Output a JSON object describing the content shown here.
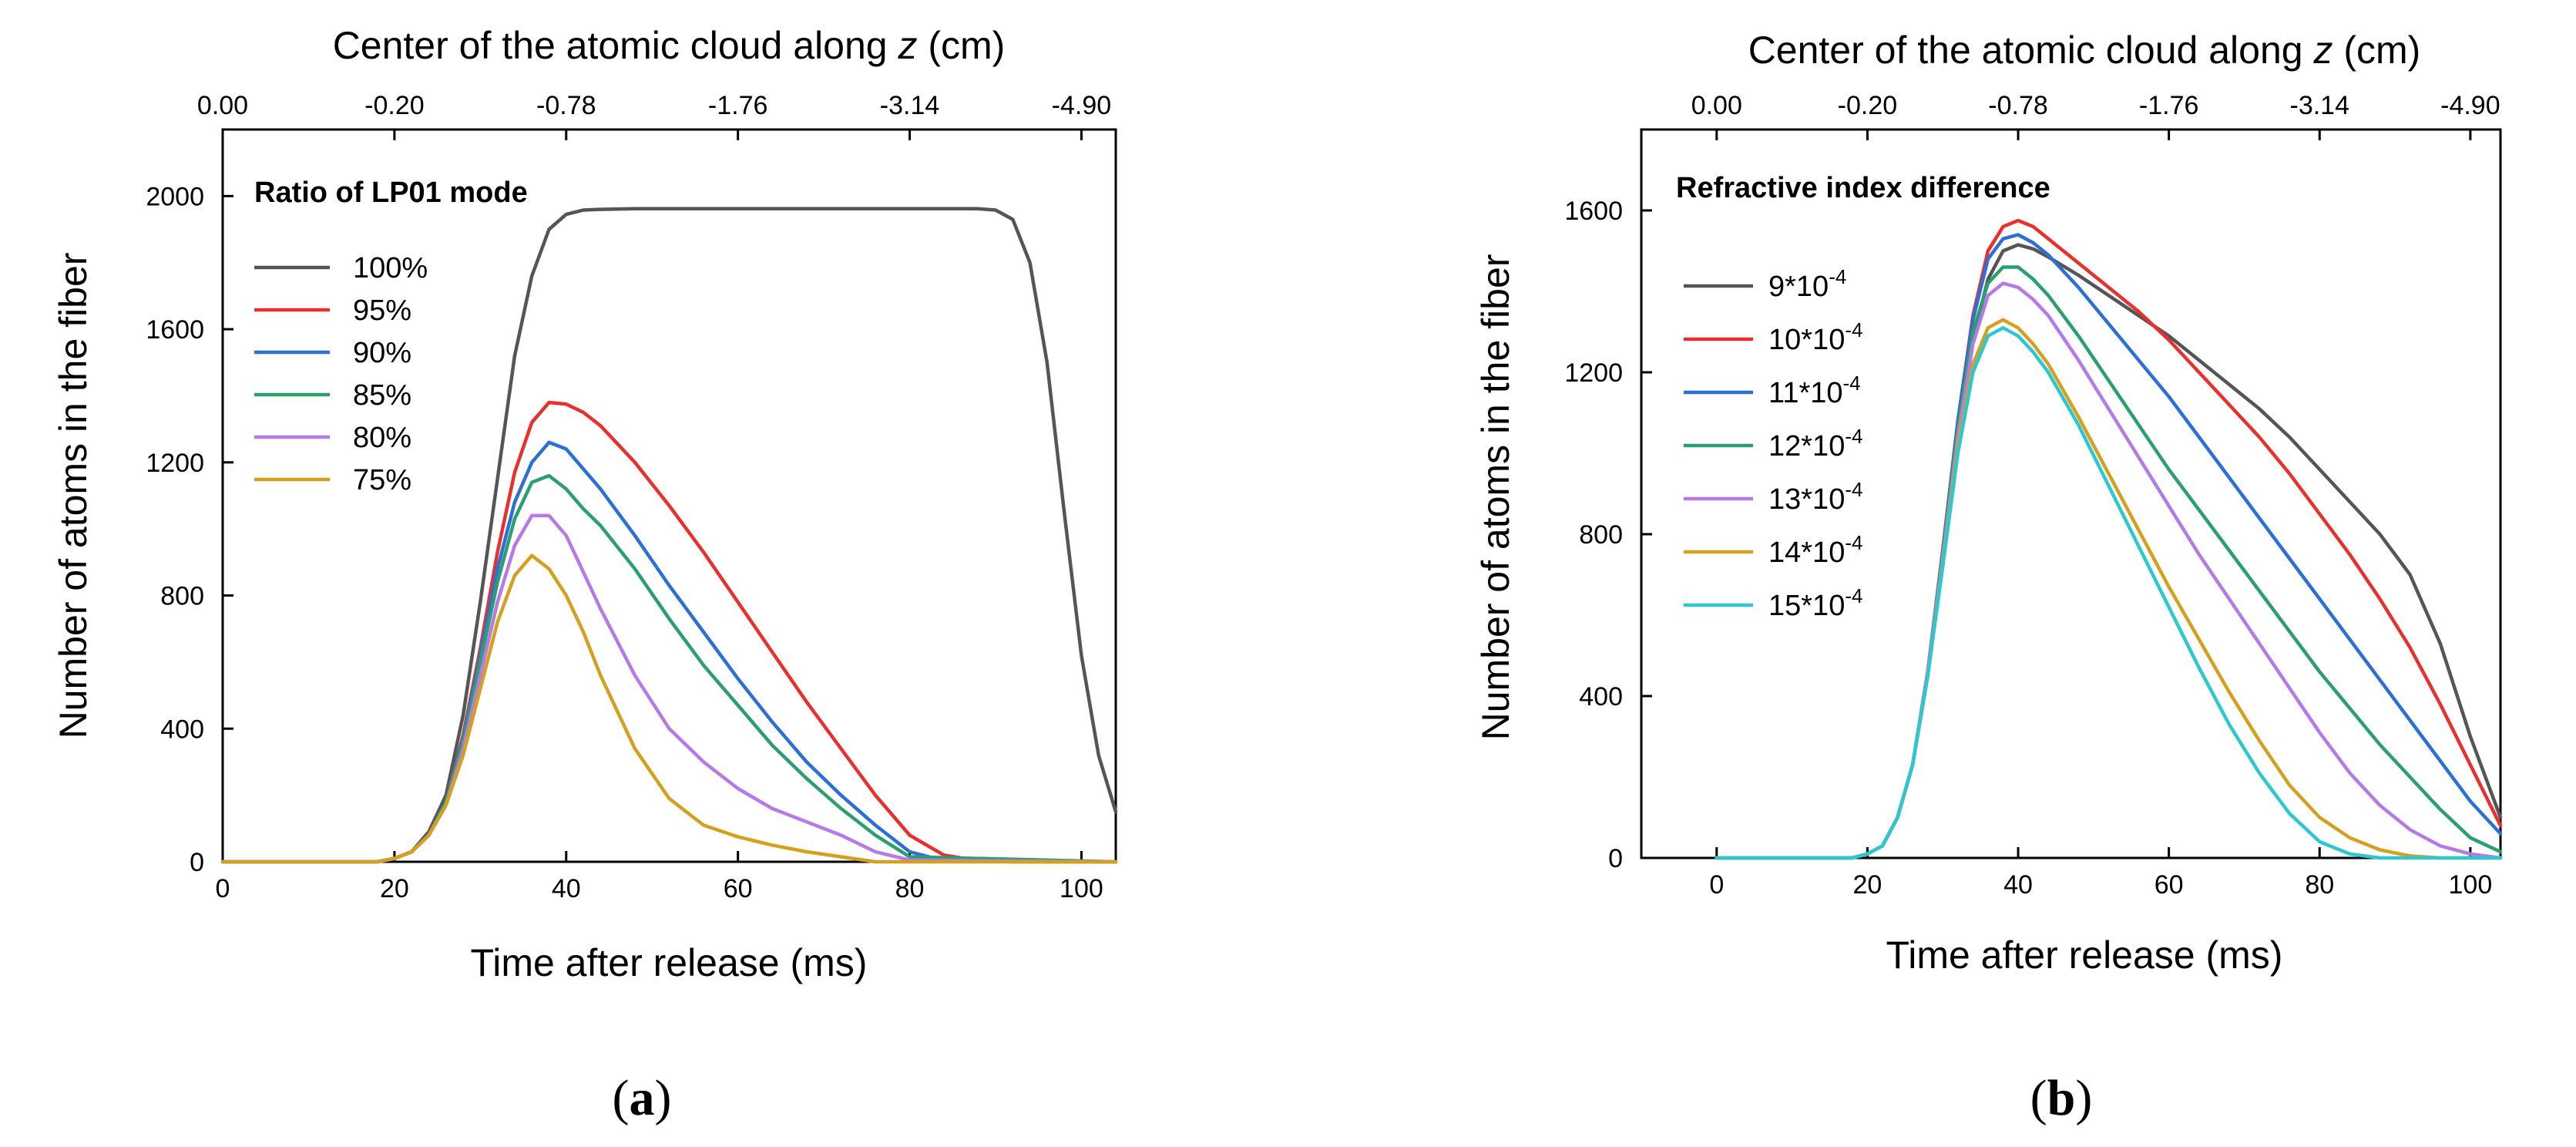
{
  "chart_data": [
    {
      "type": "line",
      "panel_label": "a",
      "title": "",
      "xlabel": "Time after release (ms)",
      "ylabel": "Number of atoms in the fiber",
      "xlim": [
        0,
        104
      ],
      "ylim": [
        0,
        2200
      ],
      "xticks": [
        0,
        20,
        40,
        60,
        80,
        100
      ],
      "yticks": [
        0,
        400,
        800,
        1200,
        1600,
        2000
      ],
      "top_axis": {
        "label": "Center of the atomic cloud along ",
        "label_italic": "z",
        "label_unit": " (cm)",
        "ticks": [
          {
            "x": 0,
            "label": "0.00"
          },
          {
            "x": 20,
            "label": "-0.20"
          },
          {
            "x": 40,
            "label": "-0.78"
          },
          {
            "x": 60,
            "label": "-1.76"
          },
          {
            "x": 80,
            "label": "-3.14"
          },
          {
            "x": 100,
            "label": "-4.90"
          }
        ]
      },
      "legend": {
        "title": "Ratio of LP01 mode",
        "position": "top-left"
      },
      "series": [
        {
          "name": "100%",
          "color": "#555555",
          "x": [
            0,
            18,
            20,
            22,
            24,
            26,
            28,
            30,
            32,
            34,
            36,
            38,
            40,
            42,
            44,
            48,
            60,
            80,
            88,
            90,
            92,
            94,
            96,
            98,
            100,
            102,
            104
          ],
          "y": [
            0,
            0,
            10,
            30,
            90,
            200,
            440,
            780,
            1150,
            1520,
            1760,
            1900,
            1945,
            1958,
            1960,
            1962,
            1962,
            1962,
            1962,
            1958,
            1930,
            1800,
            1500,
            1050,
            620,
            320,
            150
          ]
        },
        {
          "name": "95%",
          "color": "#e8302c",
          "x": [
            0,
            18,
            20,
            22,
            24,
            26,
            28,
            30,
            32,
            34,
            36,
            38,
            40,
            42,
            44,
            48,
            52,
            56,
            60,
            64,
            68,
            72,
            76,
            80,
            84,
            88,
            92,
            104
          ],
          "y": [
            0,
            0,
            10,
            30,
            80,
            180,
            380,
            640,
            930,
            1170,
            1320,
            1380,
            1375,
            1350,
            1310,
            1200,
            1070,
            930,
            780,
            630,
            480,
            340,
            200,
            80,
            20,
            3,
            0,
            0
          ]
        },
        {
          "name": "90%",
          "color": "#2c6fd6",
          "x": [
            0,
            18,
            20,
            22,
            24,
            26,
            28,
            30,
            32,
            34,
            36,
            38,
            40,
            42,
            44,
            48,
            52,
            56,
            60,
            64,
            68,
            72,
            76,
            80,
            84,
            104
          ],
          "y": [
            0,
            0,
            10,
            30,
            80,
            180,
            370,
            620,
            880,
            1080,
            1200,
            1260,
            1240,
            1180,
            1120,
            980,
            830,
            690,
            550,
            420,
            300,
            200,
            110,
            30,
            3,
            0
          ]
        },
        {
          "name": "85%",
          "color": "#2ba06e",
          "x": [
            0,
            18,
            20,
            22,
            24,
            26,
            28,
            30,
            32,
            34,
            36,
            38,
            40,
            42,
            44,
            48,
            52,
            56,
            60,
            64,
            68,
            72,
            76,
            80,
            104
          ],
          "y": [
            0,
            0,
            10,
            30,
            80,
            180,
            360,
            600,
            840,
            1030,
            1140,
            1160,
            1120,
            1060,
            1010,
            880,
            730,
            590,
            470,
            350,
            250,
            160,
            80,
            15,
            0
          ]
        },
        {
          "name": "80%",
          "color": "#b57ae6",
          "x": [
            0,
            18,
            20,
            22,
            24,
            26,
            28,
            30,
            32,
            34,
            36,
            38,
            40,
            42,
            44,
            48,
            52,
            56,
            60,
            64,
            68,
            72,
            76,
            80,
            104
          ],
          "y": [
            0,
            0,
            10,
            30,
            80,
            170,
            340,
            560,
            780,
            950,
            1040,
            1040,
            980,
            870,
            760,
            560,
            400,
            300,
            220,
            160,
            120,
            80,
            30,
            5,
            0
          ]
        },
        {
          "name": "75%",
          "color": "#d4a020",
          "x": [
            0,
            18,
            20,
            22,
            24,
            26,
            28,
            30,
            32,
            34,
            36,
            38,
            40,
            42,
            44,
            48,
            52,
            56,
            60,
            64,
            68,
            72,
            76,
            104
          ],
          "y": [
            0,
            0,
            10,
            30,
            80,
            170,
            320,
            520,
            720,
            860,
            920,
            880,
            800,
            690,
            560,
            340,
            190,
            110,
            75,
            50,
            30,
            15,
            0,
            0
          ]
        }
      ]
    },
    {
      "type": "line",
      "panel_label": "b",
      "title": "",
      "xlabel": "Time after release (ms)",
      "ylabel": "Number of atoms in the fiber",
      "xlim": [
        -10,
        104
      ],
      "ylim": [
        0,
        1800
      ],
      "xticks": [
        0,
        20,
        40,
        60,
        80,
        100
      ],
      "yticks": [
        0,
        400,
        800,
        1200,
        1600
      ],
      "top_axis": {
        "label": "Center of the atomic cloud along ",
        "label_italic": "z",
        "label_unit": " (cm)",
        "ticks": [
          {
            "x": 0,
            "label": "0.00"
          },
          {
            "x": 20,
            "label": "-0.20"
          },
          {
            "x": 40,
            "label": "-0.78"
          },
          {
            "x": 60,
            "label": "-1.76"
          },
          {
            "x": 80,
            "label": "-3.14"
          },
          {
            "x": 100,
            "label": "-4.90"
          }
        ]
      },
      "legend": {
        "title": "Refractive index difference",
        "position": "top-left"
      },
      "series": [
        {
          "name": "9*10",
          "exp": "-4",
          "color": "#555555",
          "x": [
            0,
            18,
            20,
            22,
            24,
            26,
            28,
            30,
            32,
            34,
            36,
            38,
            40,
            42,
            44,
            48,
            52,
            56,
            60,
            64,
            68,
            72,
            76,
            80,
            84,
            88,
            92,
            96,
            100,
            104
          ],
          "y": [
            0,
            0,
            10,
            30,
            100,
            230,
            450,
            740,
            1040,
            1280,
            1430,
            1500,
            1515,
            1505,
            1485,
            1440,
            1390,
            1340,
            1290,
            1230,
            1170,
            1110,
            1040,
            960,
            880,
            800,
            700,
            530,
            300,
            100
          ]
        },
        {
          "name": "10*10",
          "exp": "-4",
          "color": "#e8302c",
          "x": [
            0,
            18,
            20,
            22,
            24,
            26,
            28,
            30,
            32,
            34,
            36,
            38,
            40,
            42,
            44,
            48,
            52,
            56,
            60,
            64,
            68,
            72,
            76,
            80,
            84,
            88,
            92,
            96,
            100,
            104
          ],
          "y": [
            0,
            0,
            10,
            30,
            100,
            230,
            460,
            760,
            1080,
            1340,
            1500,
            1560,
            1575,
            1560,
            1530,
            1470,
            1410,
            1350,
            1280,
            1200,
            1120,
            1040,
            950,
            850,
            750,
            640,
            520,
            380,
            230,
            80
          ]
        },
        {
          "name": "11*10",
          "exp": "-4",
          "color": "#2c6fd6",
          "x": [
            0,
            18,
            20,
            22,
            24,
            26,
            28,
            30,
            32,
            34,
            36,
            38,
            40,
            42,
            44,
            48,
            52,
            56,
            60,
            64,
            68,
            72,
            76,
            80,
            84,
            88,
            92,
            96,
            100,
            104
          ],
          "y": [
            0,
            0,
            10,
            30,
            100,
            230,
            460,
            760,
            1080,
            1330,
            1480,
            1530,
            1540,
            1520,
            1490,
            1410,
            1320,
            1230,
            1140,
            1040,
            940,
            840,
            740,
            640,
            540,
            440,
            340,
            240,
            140,
            60
          ]
        },
        {
          "name": "12*10",
          "exp": "-4",
          "color": "#2ba06e",
          "x": [
            0,
            18,
            20,
            22,
            24,
            26,
            28,
            30,
            32,
            34,
            36,
            38,
            40,
            42,
            44,
            48,
            52,
            56,
            60,
            64,
            68,
            72,
            76,
            80,
            84,
            88,
            92,
            96,
            100,
            104
          ],
          "y": [
            0,
            0,
            10,
            30,
            100,
            230,
            460,
            750,
            1060,
            1300,
            1420,
            1460,
            1460,
            1430,
            1390,
            1290,
            1180,
            1070,
            960,
            860,
            760,
            660,
            560,
            460,
            370,
            280,
            200,
            120,
            50,
            15
          ]
        },
        {
          "name": "13*10",
          "exp": "-4",
          "color": "#b57ae6",
          "x": [
            0,
            18,
            20,
            22,
            24,
            26,
            28,
            30,
            32,
            34,
            36,
            38,
            40,
            42,
            44,
            48,
            52,
            56,
            60,
            64,
            68,
            72,
            76,
            80,
            84,
            88,
            92,
            96,
            100,
            104
          ],
          "y": [
            0,
            0,
            10,
            30,
            100,
            230,
            460,
            740,
            1040,
            1270,
            1390,
            1420,
            1410,
            1380,
            1340,
            1230,
            1110,
            990,
            870,
            750,
            640,
            530,
            420,
            310,
            210,
            130,
            70,
            30,
            10,
            0
          ]
        },
        {
          "name": "14*10",
          "exp": "-4",
          "color": "#d4a020",
          "x": [
            0,
            18,
            20,
            22,
            24,
            26,
            28,
            30,
            32,
            34,
            36,
            38,
            40,
            42,
            44,
            48,
            52,
            56,
            60,
            64,
            68,
            72,
            76,
            80,
            84,
            88,
            92,
            96,
            100,
            104
          ],
          "y": [
            0,
            0,
            10,
            30,
            100,
            230,
            450,
            730,
            1020,
            1220,
            1310,
            1330,
            1310,
            1270,
            1220,
            1090,
            950,
            810,
            670,
            540,
            410,
            290,
            180,
            100,
            50,
            20,
            5,
            0,
            0,
            0
          ]
        },
        {
          "name": "15*10",
          "exp": "-4",
          "color": "#2cc8d2",
          "x": [
            0,
            18,
            20,
            22,
            24,
            26,
            28,
            30,
            32,
            34,
            36,
            38,
            40,
            42,
            44,
            48,
            52,
            56,
            60,
            64,
            68,
            72,
            76,
            80,
            84,
            88,
            92,
            96,
            100,
            104
          ],
          "y": [
            0,
            0,
            10,
            30,
            100,
            230,
            450,
            720,
            1000,
            1200,
            1290,
            1310,
            1290,
            1250,
            1200,
            1070,
            920,
            770,
            620,
            470,
            330,
            210,
            110,
            40,
            10,
            0,
            0,
            0,
            0,
            0
          ]
        }
      ]
    }
  ]
}
